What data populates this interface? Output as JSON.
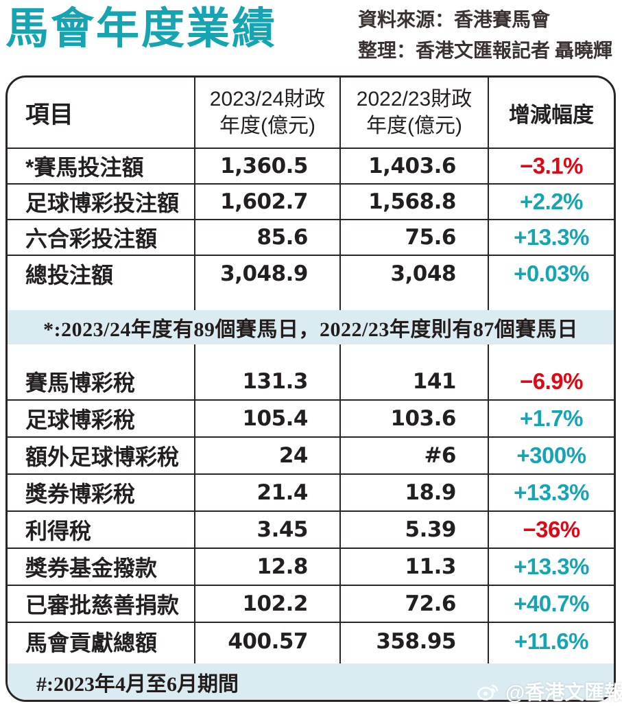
{
  "title": "馬會年度業績",
  "credits": {
    "source": "資料來源：香港賽馬會",
    "compiled": "整理：香港文匯報記者 聶曉輝"
  },
  "colors": {
    "accent_teal": "#15a4b2",
    "negative_red": "#e00613",
    "note_band_bg": "#daecf2",
    "ink": "#231f20",
    "border": "#2a2424"
  },
  "table_header": {
    "item": "項目",
    "col2_line1": "2023/24財政",
    "col2_line2": "年度(億元)",
    "col3_line1": "2022/23財政",
    "col3_line2": "年度(億元)",
    "change": "增減幅度"
  },
  "chart_data": {
    "type": "table",
    "title": "馬會年度業績",
    "columns": [
      "項目",
      "2023/24財政年度(億元)",
      "2022/23財政年度(億元)",
      "增減幅度"
    ],
    "sections": [
      {
        "rows": [
          [
            "*賽馬投注額",
            "1,360.5",
            "1,403.6",
            "−3.1%"
          ],
          [
            "足球博彩投注額",
            "1,602.7",
            "1,568.8",
            "+2.2%"
          ],
          [
            "六合彩投注額",
            "85.6",
            "75.6",
            "+13.3%"
          ],
          [
            "總投注額",
            "3,048.9",
            "3,048",
            "+0.03%"
          ]
        ]
      },
      {
        "note": "*:2023/24年度有89個賽馬日，2022/23年度則有87個賽馬日"
      },
      {
        "rows": [
          [
            "賽馬博彩稅",
            "131.3",
            "141",
            "−6.9%"
          ],
          [
            "足球博彩稅",
            "105.4",
            "103.6",
            "+1.7%"
          ],
          [
            "額外足球博彩稅",
            "24",
            "#6",
            "+300%"
          ],
          [
            "獎券博彩稅",
            "21.4",
            "18.9",
            "+13.3%"
          ],
          [
            "利得稅",
            "3.45",
            "5.39",
            "−36%"
          ],
          [
            "獎券基金撥款",
            "12.8",
            "11.3",
            "+13.3%"
          ],
          [
            "已審批慈善捐款",
            "102.2",
            "72.6",
            "+40.7%"
          ],
          [
            "馬會貢獻總額",
            "400.57",
            "358.95",
            "+11.6%"
          ]
        ]
      },
      {
        "note": "#:2023年4月至6月期間"
      }
    ]
  },
  "watermark": {
    "icon": "weibo-icon",
    "text": "@香港文匯報"
  }
}
